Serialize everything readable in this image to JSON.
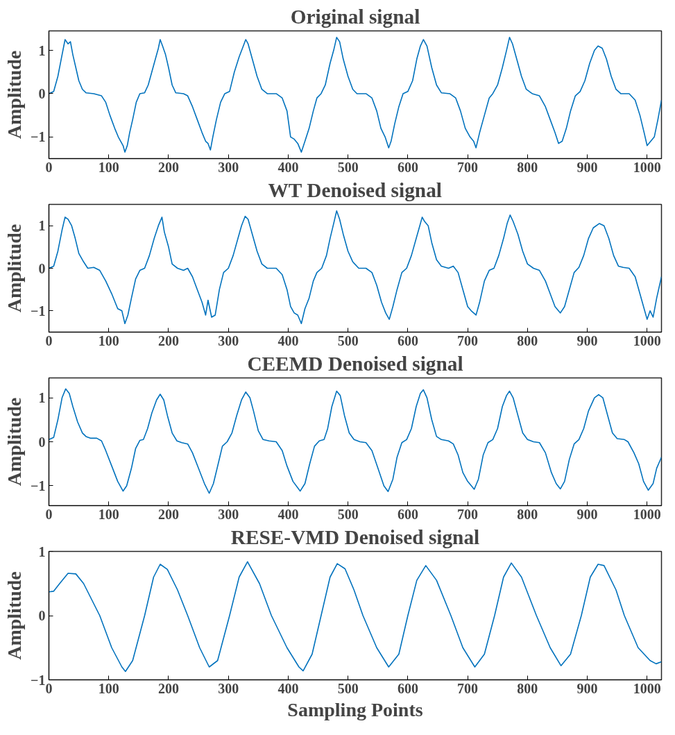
{
  "chart_data": [
    {
      "type": "line",
      "title": "Original signal",
      "ylabel": "Amplitude",
      "xlim": [
        0,
        1024
      ],
      "ylim": [
        -1.5,
        1.45
      ],
      "xticks": [
        0,
        100,
        200,
        300,
        400,
        500,
        600,
        700,
        800,
        900,
        1000
      ],
      "yticks": [
        -1,
        0,
        1
      ],
      "grid": false,
      "x": [
        0,
        8,
        15,
        22,
        27,
        32,
        36,
        40,
        45,
        50,
        56,
        62,
        75,
        88,
        95,
        102,
        110,
        116,
        120,
        124,
        127,
        131,
        135,
        140,
        146,
        152,
        160,
        166,
        172,
        178,
        183,
        186,
        190,
        195,
        200,
        206,
        212,
        225,
        232,
        240,
        248,
        256,
        262,
        266,
        270,
        274,
        280,
        287,
        294,
        302,
        310,
        318,
        325,
        329,
        333,
        340,
        348,
        356,
        365,
        380,
        390,
        398,
        404,
        410,
        416,
        422,
        428,
        435,
        442,
        448,
        455,
        462,
        470,
        476,
        481,
        486,
        492,
        500,
        508,
        515,
        530,
        540,
        548,
        555,
        562,
        568,
        572,
        578,
        585,
        592,
        600,
        608,
        615,
        621,
        626,
        632,
        640,
        648,
        656,
        670,
        680,
        688,
        696,
        704,
        710,
        714,
        720,
        728,
        736,
        742,
        750,
        758,
        765,
        770,
        775,
        782,
        790,
        798,
        808,
        820,
        830,
        838,
        846,
        852,
        858,
        865,
        872,
        880,
        888,
        896,
        904,
        912,
        918,
        925,
        932,
        940,
        948,
        956,
        970,
        980,
        988,
        995,
        1000,
        1006,
        1012,
        1018,
        1024
      ],
      "series": [
        {
          "color": "#0072bd",
          "values": [
            0,
            0.05,
            0.4,
            0.9,
            1.25,
            1.15,
            1.2,
            0.9,
            0.6,
            0.3,
            0.1,
            0.02,
            0,
            -0.05,
            -0.2,
            -0.5,
            -0.8,
            -1.0,
            -1.1,
            -1.2,
            -1.35,
            -1.2,
            -0.9,
            -0.6,
            -0.2,
            0,
            0.02,
            0.2,
            0.5,
            0.8,
            1.05,
            1.25,
            1.1,
            0.9,
            0.6,
            0.2,
            0.02,
            0,
            -0.05,
            -0.3,
            -0.6,
            -0.9,
            -1.1,
            -1.15,
            -1.3,
            -1.0,
            -0.6,
            -0.2,
            0,
            0.05,
            0.5,
            0.85,
            1.1,
            1.25,
            1.15,
            0.8,
            0.4,
            0.1,
            0,
            0,
            -0.1,
            -0.4,
            -1.0,
            -1.05,
            -1.15,
            -1.35,
            -1.1,
            -0.8,
            -0.4,
            -0.1,
            0,
            0.2,
            0.7,
            1.0,
            1.3,
            1.2,
            0.8,
            0.4,
            0.1,
            0,
            0,
            -0.1,
            -0.4,
            -0.8,
            -1.0,
            -1.25,
            -1.1,
            -0.7,
            -0.3,
            0,
            0.05,
            0.3,
            0.8,
            1.1,
            1.25,
            1.1,
            0.6,
            0.2,
            0.02,
            0,
            -0.1,
            -0.4,
            -0.8,
            -1.0,
            -1.1,
            -1.25,
            -0.9,
            -0.5,
            -0.1,
            0,
            0.2,
            0.6,
            1.0,
            1.3,
            1.15,
            0.8,
            0.4,
            0.1,
            0,
            -0.05,
            -0.3,
            -0.6,
            -0.9,
            -1.15,
            -1.1,
            -0.8,
            -0.4,
            -0.05,
            0.05,
            0.3,
            0.7,
            1.0,
            1.1,
            1.05,
            0.8,
            0.4,
            0.1,
            0,
            0,
            -0.15,
            -0.5,
            -0.9,
            -1.2,
            -1.1,
            -1.0,
            -0.6,
            -0.15
          ]
        }
      ]
    },
    {
      "type": "line",
      "title": "WT Denoised signal",
      "ylabel": "Amplitude",
      "xlim": [
        0,
        1024
      ],
      "ylim": [
        -1.5,
        1.5
      ],
      "xticks": [
        0,
        100,
        200,
        300,
        400,
        500,
        600,
        700,
        800,
        900,
        1000
      ],
      "yticks": [
        -1,
        0,
        1
      ],
      "grid": false,
      "x": [
        0,
        8,
        15,
        22,
        27,
        32,
        38,
        44,
        50,
        58,
        65,
        75,
        85,
        95,
        105,
        115,
        122,
        127,
        132,
        138,
        145,
        152,
        160,
        168,
        176,
        183,
        189,
        193,
        200,
        206,
        215,
        225,
        232,
        240,
        248,
        256,
        262,
        266,
        272,
        278,
        285,
        292,
        300,
        308,
        316,
        322,
        328,
        333,
        340,
        348,
        356,
        365,
        380,
        390,
        398,
        404,
        410,
        416,
        422,
        428,
        435,
        442,
        448,
        456,
        464,
        470,
        476,
        481,
        486,
        492,
        500,
        508,
        518,
        530,
        540,
        548,
        556,
        563,
        569,
        575,
        582,
        590,
        598,
        606,
        614,
        620,
        624,
        628,
        634,
        640,
        648,
        656,
        668,
        676,
        684,
        692,
        700,
        706,
        714,
        720,
        728,
        736,
        744,
        752,
        760,
        766,
        771,
        776,
        784,
        792,
        800,
        810,
        820,
        830,
        838,
        846,
        855,
        862,
        870,
        878,
        886,
        894,
        902,
        910,
        920,
        928,
        936,
        944,
        952,
        960,
        970,
        980,
        988,
        994,
        1000,
        1005,
        1010,
        1016,
        1024
      ],
      "series": [
        {
          "color": "#0072bd",
          "values": [
            0,
            0.05,
            0.4,
            0.9,
            1.2,
            1.15,
            1.0,
            0.7,
            0.35,
            0.15,
            0,
            0.02,
            -0.05,
            -0.3,
            -0.6,
            -0.95,
            -1.0,
            -1.3,
            -1.1,
            -0.7,
            -0.25,
            -0.05,
            0,
            0.3,
            0.7,
            1.0,
            1.2,
            0.85,
            0.5,
            0.1,
            0,
            -0.05,
            0,
            -0.2,
            -0.5,
            -0.8,
            -1.1,
            -0.75,
            -1.15,
            -1.1,
            -0.5,
            -0.1,
            0,
            0.3,
            0.7,
            1.0,
            1.22,
            1.15,
            0.8,
            0.4,
            0.1,
            0,
            0,
            -0.15,
            -0.5,
            -0.9,
            -1.05,
            -1.1,
            -1.3,
            -0.95,
            -0.7,
            -0.3,
            -0.1,
            0,
            0.3,
            0.7,
            1.05,
            1.35,
            1.15,
            0.8,
            0.4,
            0.15,
            0,
            0,
            -0.1,
            -0.4,
            -0.8,
            -1.05,
            -1.2,
            -0.9,
            -0.5,
            -0.1,
            0,
            0.3,
            0.7,
            1.0,
            1.2,
            1.1,
            1.0,
            0.6,
            0.2,
            0.05,
            0,
            0.05,
            -0.1,
            -0.5,
            -0.9,
            -1.0,
            -1.1,
            -0.8,
            -0.3,
            -0.05,
            0,
            0.3,
            0.7,
            1.05,
            1.25,
            1.1,
            0.8,
            0.4,
            0.1,
            0,
            -0.05,
            -0.3,
            -0.6,
            -0.9,
            -1.05,
            -0.9,
            -0.5,
            -0.1,
            0.02,
            0.3,
            0.7,
            0.95,
            1.05,
            1.0,
            0.7,
            0.3,
            0.05,
            0.02,
            0,
            -0.2,
            -0.6,
            -0.9,
            -1.2,
            -1.0,
            -1.15,
            -0.7,
            -0.2
          ]
        }
      ]
    },
    {
      "type": "line",
      "title": "CEEMD Denoised signal",
      "ylabel": "Amplitude",
      "xlim": [
        0,
        1024
      ],
      "ylim": [
        -1.45,
        1.45
      ],
      "xticks": [
        0,
        100,
        200,
        300,
        400,
        500,
        600,
        700,
        800,
        900,
        1000
      ],
      "yticks": [
        -1,
        0,
        1
      ],
      "grid": false,
      "x": [
        0,
        8,
        15,
        22,
        28,
        34,
        40,
        48,
        56,
        62,
        70,
        80,
        88,
        95,
        105,
        115,
        124,
        130,
        138,
        145,
        152,
        158,
        165,
        172,
        180,
        186,
        192,
        198,
        206,
        214,
        222,
        232,
        240,
        250,
        260,
        268,
        275,
        283,
        290,
        298,
        306,
        314,
        322,
        329,
        336,
        342,
        350,
        358,
        368,
        380,
        390,
        398,
        408,
        420,
        428,
        436,
        444,
        452,
        460,
        466,
        473,
        481,
        487,
        494,
        502,
        510,
        520,
        530,
        540,
        550,
        560,
        567,
        575,
        582,
        590,
        598,
        606,
        614,
        621,
        626,
        632,
        640,
        648,
        656,
        668,
        676,
        684,
        692,
        700,
        711,
        718,
        726,
        734,
        742,
        750,
        758,
        765,
        770,
        776,
        784,
        792,
        800,
        810,
        820,
        830,
        840,
        848,
        855,
        862,
        870,
        878,
        886,
        894,
        902,
        912,
        919,
        926,
        934,
        942,
        950,
        962,
        968,
        978,
        986,
        994,
        1002,
        1010,
        1016,
        1024
      ],
      "series": [
        {
          "color": "#0072bd",
          "values": [
            0.05,
            0.1,
            0.5,
            1.0,
            1.2,
            1.1,
            0.8,
            0.45,
            0.2,
            0.12,
            0.08,
            0.08,
            0.02,
            -0.2,
            -0.55,
            -0.9,
            -1.12,
            -1.0,
            -0.6,
            -0.15,
            0.03,
            0.05,
            0.3,
            0.65,
            0.95,
            1.08,
            0.95,
            0.6,
            0.2,
            0.02,
            -0.02,
            -0.05,
            -0.25,
            -0.6,
            -0.95,
            -1.17,
            -0.95,
            -0.5,
            -0.1,
            0,
            0.2,
            0.6,
            0.95,
            1.13,
            1.0,
            0.7,
            0.25,
            0.05,
            0.02,
            0,
            -0.2,
            -0.55,
            -0.9,
            -1.12,
            -0.95,
            -0.5,
            -0.1,
            0.02,
            0.05,
            0.3,
            0.8,
            1.15,
            1.05,
            0.6,
            0.2,
            0.05,
            0,
            -0.02,
            -0.2,
            -0.6,
            -1.0,
            -1.13,
            -0.85,
            -0.35,
            -0.02,
            0.05,
            0.3,
            0.8,
            1.1,
            1.18,
            1.0,
            0.5,
            0.12,
            0.05,
            0.02,
            -0.05,
            -0.3,
            -0.7,
            -0.9,
            -1.08,
            -0.85,
            -0.3,
            -0.02,
            0.05,
            0.3,
            0.8,
            1.05,
            1.15,
            1.0,
            0.6,
            0.2,
            0.05,
            0,
            -0.02,
            -0.25,
            -0.7,
            -0.95,
            -1.07,
            -0.9,
            -0.4,
            -0.05,
            0.05,
            0.3,
            0.7,
            1.0,
            1.07,
            1.0,
            0.6,
            0.2,
            0.07,
            0.05,
            0,
            -0.25,
            -0.5,
            -0.9,
            -1.1,
            -0.95,
            -0.6,
            -0.35
          ]
        }
      ]
    },
    {
      "type": "line",
      "title": "RESE-VMD Denoised signal",
      "ylabel": "Amplitude",
      "xlabel": "Sampling Points",
      "xlim": [
        0,
        1024
      ],
      "ylim": [
        -1,
        1
      ],
      "xticks": [
        0,
        100,
        200,
        300,
        400,
        500,
        600,
        700,
        800,
        900,
        1000
      ],
      "yticks": [
        -1,
        0,
        1
      ],
      "grid": false,
      "x": [
        0,
        8,
        18,
        32,
        45,
        58,
        85,
        105,
        122,
        128,
        140,
        160,
        175,
        186,
        198,
        215,
        232,
        252,
        268,
        282,
        302,
        318,
        332,
        352,
        372,
        398,
        418,
        425,
        440,
        455,
        470,
        482,
        495,
        510,
        525,
        548,
        568,
        585,
        600,
        615,
        630,
        648,
        672,
        692,
        712,
        728,
        745,
        760,
        773,
        790,
        815,
        838,
        856,
        872,
        890,
        905,
        918,
        928,
        948,
        962,
        985,
        1005,
        1015,
        1024
      ],
      "series": [
        {
          "color": "#0072bd",
          "values": [
            0.37,
            0.38,
            0.5,
            0.66,
            0.65,
            0.5,
            0,
            -0.5,
            -0.8,
            -0.87,
            -0.7,
            0,
            0.6,
            0.8,
            0.72,
            0.4,
            0,
            -0.5,
            -0.8,
            -0.7,
            0,
            0.6,
            0.84,
            0.5,
            0,
            -0.5,
            -0.8,
            -0.86,
            -0.6,
            0,
            0.6,
            0.81,
            0.73,
            0.4,
            0,
            -0.5,
            -0.8,
            -0.6,
            0,
            0.55,
            0.78,
            0.55,
            0,
            -0.5,
            -0.8,
            -0.6,
            0,
            0.6,
            0.82,
            0.6,
            0,
            -0.5,
            -0.78,
            -0.6,
            0,
            0.6,
            0.8,
            0.78,
            0.4,
            0,
            -0.5,
            -0.7,
            -0.75,
            -0.72
          ]
        }
      ]
    }
  ]
}
